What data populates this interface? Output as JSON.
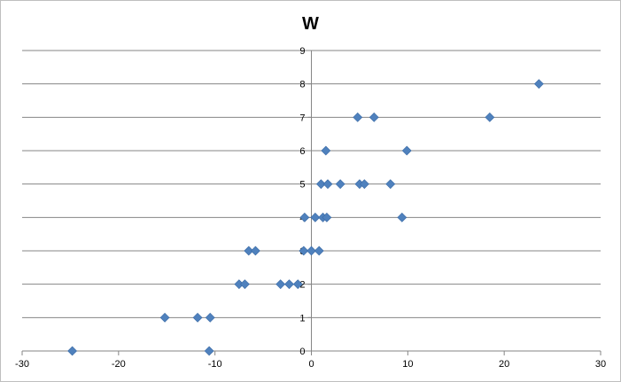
{
  "chart_data": {
    "type": "scatter",
    "title": "W",
    "xlabel": "",
    "ylabel": "",
    "xlim": [
      -30,
      30
    ],
    "ylim": [
      0,
      9
    ],
    "xticks": [
      -30,
      -20,
      -10,
      0,
      10,
      20,
      30
    ],
    "yticks": [
      0,
      1,
      2,
      3,
      4,
      5,
      6,
      7,
      8,
      9
    ],
    "grid": {
      "horizontal": true,
      "vertical": false
    },
    "legend": "none",
    "marker": "diamond",
    "marker_color": "#4f81bd",
    "grid_color": "#868686",
    "points": [
      {
        "x": -24.8,
        "y": 0
      },
      {
        "x": -10.6,
        "y": 0
      },
      {
        "x": -15.2,
        "y": 1
      },
      {
        "x": -11.8,
        "y": 1
      },
      {
        "x": -10.5,
        "y": 1
      },
      {
        "x": -7.5,
        "y": 2
      },
      {
        "x": -6.9,
        "y": 2
      },
      {
        "x": -3.2,
        "y": 2
      },
      {
        "x": -2.3,
        "y": 2
      },
      {
        "x": -1.4,
        "y": 2
      },
      {
        "x": -6.5,
        "y": 3
      },
      {
        "x": -5.8,
        "y": 3
      },
      {
        "x": -0.8,
        "y": 3
      },
      {
        "x": 0.0,
        "y": 3
      },
      {
        "x": 0.8,
        "y": 3
      },
      {
        "x": -0.7,
        "y": 4
      },
      {
        "x": 0.4,
        "y": 4
      },
      {
        "x": 1.2,
        "y": 4
      },
      {
        "x": 1.6,
        "y": 4
      },
      {
        "x": 9.4,
        "y": 4
      },
      {
        "x": 1.0,
        "y": 5
      },
      {
        "x": 1.7,
        "y": 5
      },
      {
        "x": 3.0,
        "y": 5
      },
      {
        "x": 5.0,
        "y": 5
      },
      {
        "x": 5.5,
        "y": 5
      },
      {
        "x": 8.2,
        "y": 5
      },
      {
        "x": 1.5,
        "y": 6
      },
      {
        "x": 9.9,
        "y": 6
      },
      {
        "x": 4.8,
        "y": 7
      },
      {
        "x": 6.5,
        "y": 7
      },
      {
        "x": 18.5,
        "y": 7
      },
      {
        "x": 23.6,
        "y": 8
      }
    ]
  }
}
